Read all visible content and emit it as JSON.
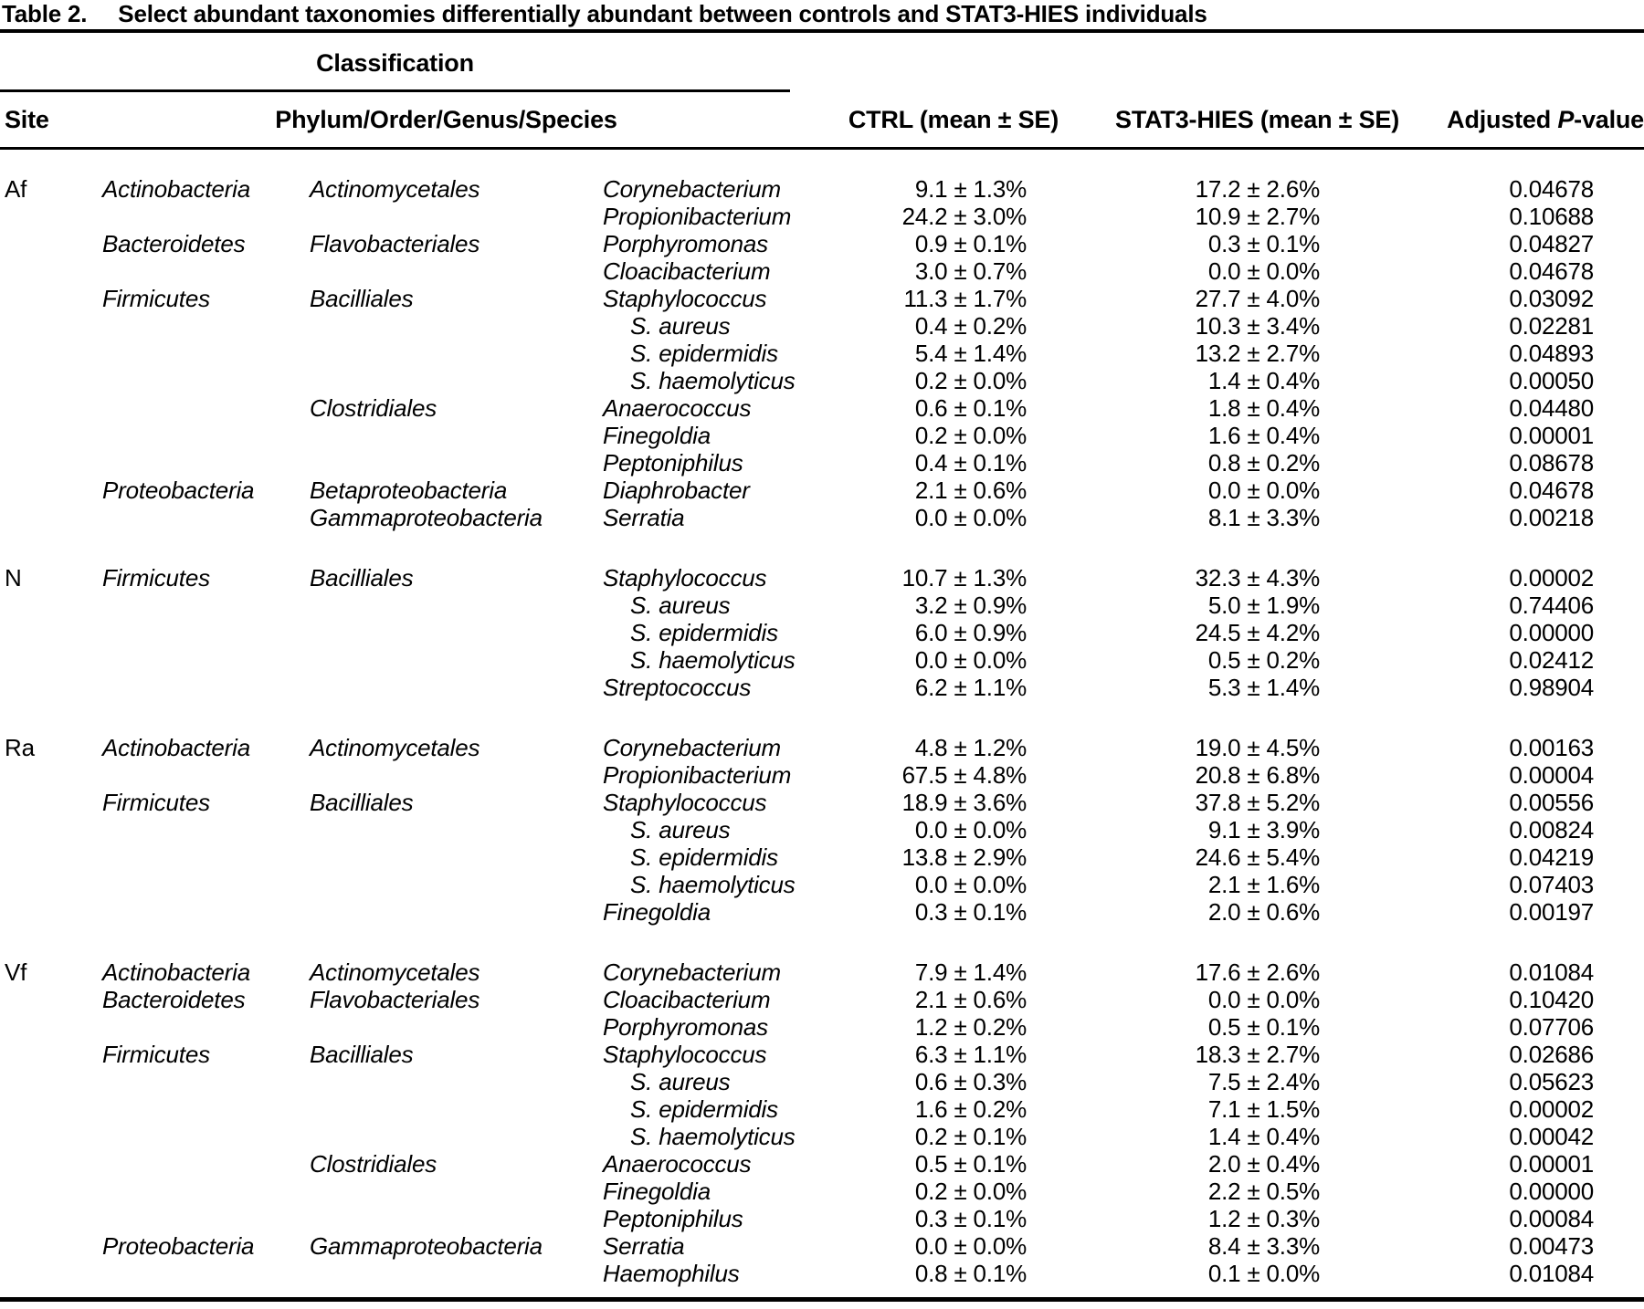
{
  "title": {
    "label": "Table 2.",
    "caption": "Select abundant taxonomies differentially abundant between controls and STAT3-HIES individuals"
  },
  "header": {
    "classification_label": "Classification",
    "site": "Site",
    "taxonomy": "Phylum/Order/Genus/Species",
    "ctrl": "CTRL (mean ± SE)",
    "stat3": "STAT3-HIES (mean ± SE)",
    "pvalue_prefix": "Adjusted ",
    "pvalue_p": "P",
    "pvalue_suffix": "-value"
  },
  "colors": {
    "text": "#000000",
    "background": "#ffffff"
  },
  "table": {
    "blocks": [
      {
        "site": "Af",
        "rows": [
          {
            "phylum": "Actinobacteria",
            "order": "Actinomycetales",
            "genus": "Corynebacterium",
            "species": false,
            "ctrl": "9.1 ± 1.3%",
            "hies": "17.2 ± 2.6%",
            "p": "0.04678"
          },
          {
            "phylum": "",
            "order": "",
            "genus": "Propionibacterium",
            "species": false,
            "ctrl": "24.2 ± 3.0%",
            "hies": "10.9 ± 2.7%",
            "p": "0.10688"
          },
          {
            "phylum": "Bacteroidetes",
            "order": "Flavobacteriales",
            "genus": "Porphyromonas",
            "species": false,
            "ctrl": "0.9 ± 0.1%",
            "hies": "0.3 ± 0.1%",
            "p": "0.04827"
          },
          {
            "phylum": "",
            "order": "",
            "genus": "Cloacibacterium",
            "species": false,
            "ctrl": "3.0 ± 0.7%",
            "hies": "0.0 ± 0.0%",
            "p": "0.04678"
          },
          {
            "phylum": "Firmicutes",
            "order": "Bacilliales",
            "genus": "Staphylococcus",
            "species": false,
            "ctrl": "11.3 ± 1.7%",
            "hies": "27.7 ± 4.0%",
            "p": "0.03092"
          },
          {
            "phylum": "",
            "order": "",
            "genus": "S. aureus",
            "species": true,
            "ctrl": "0.4 ± 0.2%",
            "hies": "10.3 ± 3.4%",
            "p": "0.02281"
          },
          {
            "phylum": "",
            "order": "",
            "genus": "S. epidermidis",
            "species": true,
            "ctrl": "5.4 ± 1.4%",
            "hies": "13.2 ± 2.7%",
            "p": "0.04893"
          },
          {
            "phylum": "",
            "order": "",
            "genus": "S. haemolyticus",
            "species": true,
            "ctrl": "0.2 ± 0.0%",
            "hies": "1.4 ± 0.4%",
            "p": "0.00050"
          },
          {
            "phylum": "",
            "order": "Clostridiales",
            "genus": "Anaerococcus",
            "species": false,
            "ctrl": "0.6 ± 0.1%",
            "hies": "1.8 ± 0.4%",
            "p": "0.04480"
          },
          {
            "phylum": "",
            "order": "",
            "genus": "Finegoldia",
            "species": false,
            "ctrl": "0.2 ± 0.0%",
            "hies": "1.6 ± 0.4%",
            "p": "0.00001"
          },
          {
            "phylum": "",
            "order": "",
            "genus": "Peptoniphilus",
            "species": false,
            "ctrl": "0.4 ± 0.1%",
            "hies": "0.8 ± 0.2%",
            "p": "0.08678"
          },
          {
            "phylum": "Proteobacteria",
            "order": "Betaproteobacteria",
            "genus": "Diaphrobacter",
            "species": false,
            "ctrl": "2.1 ± 0.6%",
            "hies": "0.0 ± 0.0%",
            "p": "0.04678"
          },
          {
            "phylum": "",
            "order": "Gammaproteobacteria",
            "genus": "Serratia",
            "species": false,
            "ctrl": "0.0 ± 0.0%",
            "hies": "8.1 ± 3.3%",
            "p": "0.00218"
          }
        ]
      },
      {
        "site": "N",
        "rows": [
          {
            "phylum": "Firmicutes",
            "order": "Bacilliales",
            "genus": "Staphylococcus",
            "species": false,
            "ctrl": "10.7 ± 1.3%",
            "hies": "32.3 ± 4.3%",
            "p": "0.00002"
          },
          {
            "phylum": "",
            "order": "",
            "genus": "S. aureus",
            "species": true,
            "ctrl": "3.2 ± 0.9%",
            "hies": "5.0 ± 1.9%",
            "p": "0.74406"
          },
          {
            "phylum": "",
            "order": "",
            "genus": "S. epidermidis",
            "species": true,
            "ctrl": "6.0 ± 0.9%",
            "hies": "24.5 ± 4.2%",
            "p": "0.00000"
          },
          {
            "phylum": "",
            "order": "",
            "genus": "S. haemolyticus",
            "species": true,
            "ctrl": "0.0 ± 0.0%",
            "hies": "0.5 ± 0.2%",
            "p": "0.02412"
          },
          {
            "phylum": "",
            "order": "",
            "genus": "Streptococcus",
            "species": false,
            "ctrl": "6.2 ± 1.1%",
            "hies": "5.3 ± 1.4%",
            "p": "0.98904"
          }
        ]
      },
      {
        "site": "Ra",
        "rows": [
          {
            "phylum": "Actinobacteria",
            "order": "Actinomycetales",
            "genus": "Corynebacterium",
            "species": false,
            "ctrl": "4.8 ± 1.2%",
            "hies": "19.0 ± 4.5%",
            "p": "0.00163"
          },
          {
            "phylum": "",
            "order": "",
            "genus": "Propionibacterium",
            "species": false,
            "ctrl": "67.5 ± 4.8%",
            "hies": "20.8 ± 6.8%",
            "p": "0.00004"
          },
          {
            "phylum": "Firmicutes",
            "order": "Bacilliales",
            "genus": "Staphylococcus",
            "species": false,
            "ctrl": "18.9 ± 3.6%",
            "hies": "37.8 ± 5.2%",
            "p": "0.00556"
          },
          {
            "phylum": "",
            "order": "",
            "genus": "S. aureus",
            "species": true,
            "ctrl": "0.0 ± 0.0%",
            "hies": "9.1 ± 3.9%",
            "p": "0.00824"
          },
          {
            "phylum": "",
            "order": "",
            "genus": "S. epidermidis",
            "species": true,
            "ctrl": "13.8 ± 2.9%",
            "hies": "24.6 ± 5.4%",
            "p": "0.04219"
          },
          {
            "phylum": "",
            "order": "",
            "genus": "S. haemolyticus",
            "species": true,
            "ctrl": "0.0 ± 0.0%",
            "hies": "2.1 ± 1.6%",
            "p": "0.07403"
          },
          {
            "phylum": "",
            "order": "",
            "genus": "Finegoldia",
            "species": false,
            "ctrl": "0.3 ± 0.1%",
            "hies": "2.0 ± 0.6%",
            "p": "0.00197"
          }
        ]
      },
      {
        "site": "Vf",
        "rows": [
          {
            "phylum": "Actinobacteria",
            "order": "Actinomycetales",
            "genus": "Corynebacterium",
            "species": false,
            "ctrl": "7.9 ± 1.4%",
            "hies": "17.6 ± 2.6%",
            "p": "0.01084"
          },
          {
            "phylum": "Bacteroidetes",
            "order": "Flavobacteriales",
            "genus": "Cloacibacterium",
            "species": false,
            "ctrl": "2.1 ± 0.6%",
            "hies": "0.0 ± 0.0%",
            "p": "0.10420"
          },
          {
            "phylum": "",
            "order": "",
            "genus": "Porphyromonas",
            "species": false,
            "ctrl": "1.2 ± 0.2%",
            "hies": "0.5 ± 0.1%",
            "p": "0.07706"
          },
          {
            "phylum": "Firmicutes",
            "order": "Bacilliales",
            "genus": "Staphylococcus",
            "species": false,
            "ctrl": "6.3 ± 1.1%",
            "hies": "18.3 ± 2.7%",
            "p": "0.02686"
          },
          {
            "phylum": "",
            "order": "",
            "genus": "S. aureus",
            "species": true,
            "ctrl": "0.6 ± 0.3%",
            "hies": "7.5 ± 2.4%",
            "p": "0.05623"
          },
          {
            "phylum": "",
            "order": "",
            "genus": "S. epidermidis",
            "species": true,
            "ctrl": "1.6 ± 0.2%",
            "hies": "7.1 ± 1.5%",
            "p": "0.00002"
          },
          {
            "phylum": "",
            "order": "",
            "genus": "S. haemolyticus",
            "species": true,
            "ctrl": "0.2 ± 0.1%",
            "hies": "1.4 ± 0.4%",
            "p": "0.00042"
          },
          {
            "phylum": "",
            "order": "Clostridiales",
            "genus": "Anaerococcus",
            "species": false,
            "ctrl": "0.5 ± 0.1%",
            "hies": "2.0 ± 0.4%",
            "p": "0.00001"
          },
          {
            "phylum": "",
            "order": "",
            "genus": "Finegoldia",
            "species": false,
            "ctrl": "0.2 ± 0.0%",
            "hies": "2.2 ± 0.5%",
            "p": "0.00000"
          },
          {
            "phylum": "",
            "order": "",
            "genus": "Peptoniphilus",
            "species": false,
            "ctrl": "0.3 ± 0.1%",
            "hies": "1.2 ± 0.3%",
            "p": "0.00084"
          },
          {
            "phylum": "Proteobacteria",
            "order": "Gammaproteobacteria",
            "genus": "Serratia",
            "species": false,
            "ctrl": "0.0 ± 0.0%",
            "hies": "8.4 ± 3.3%",
            "p": "0.00473"
          },
          {
            "phylum": "",
            "order": "",
            "genus": "Haemophilus",
            "species": false,
            "ctrl": "0.8 ± 0.1%",
            "hies": "0.1 ± 0.0%",
            "p": "0.01084"
          }
        ]
      }
    ]
  }
}
